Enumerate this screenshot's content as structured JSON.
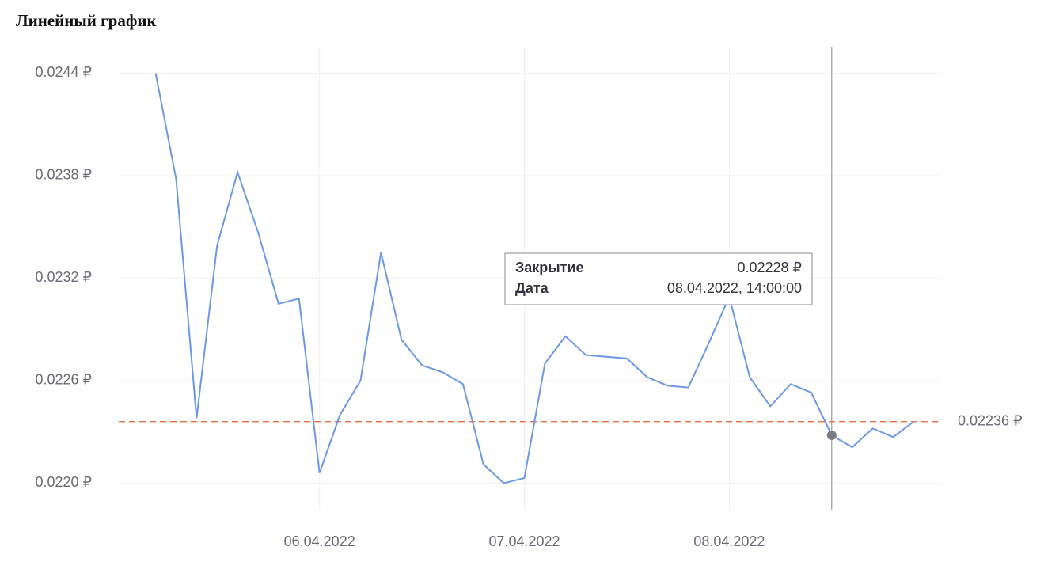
{
  "chart_data": {
    "type": "line",
    "title": "Линейный график",
    "series": [
      {
        "name": "Закрытие",
        "color": "#6b98e8",
        "values": [
          0.0244,
          0.02378,
          0.02238,
          0.02339,
          0.02382,
          0.02347,
          0.02305,
          0.02308,
          0.02206,
          0.0224,
          0.0226,
          0.02335,
          0.02284,
          0.02269,
          0.02265,
          0.02258,
          0.02211,
          0.022,
          0.02203,
          0.0227,
          0.02286,
          0.02275,
          0.02274,
          0.02273,
          0.02262,
          0.02257,
          0.02256,
          0.02282,
          0.02309,
          0.02262,
          0.02245,
          0.02258,
          0.02253,
          0.02228,
          0.02221,
          0.02232,
          0.02227,
          0.02236
        ]
      }
    ],
    "xlim": [
      -1.8,
      38.3
    ],
    "xticks": [
      {
        "value": 8,
        "label": "06.04.2022"
      },
      {
        "value": 18,
        "label": "07.04.2022"
      },
      {
        "value": 28,
        "label": "08.04.2022"
      }
    ],
    "ylim": [
      0.02184,
      0.02455
    ],
    "yticks": [
      {
        "value": 0.022,
        "label": "0.0220 ₽"
      },
      {
        "value": 0.0226,
        "label": "0.0226 ₽"
      },
      {
        "value": 0.0232,
        "label": "0.0232 ₽"
      },
      {
        "value": 0.0238,
        "label": "0.0238 ₽"
      },
      {
        "value": 0.0244,
        "label": "0.0244 ₽"
      }
    ],
    "grid": true,
    "reference_line": {
      "value": 0.02236,
      "label": "0.02236 ₽",
      "color": "#e0622e"
    },
    "tooltip": {
      "rows": [
        {
          "label": "Закрытие",
          "value": {
            "value": 0.02228,
            "label": "0.02228 ₽"
          }
        },
        {
          "label": "Дата",
          "value": "08.04.2022, 14:00:00"
        }
      ]
    }
  }
}
